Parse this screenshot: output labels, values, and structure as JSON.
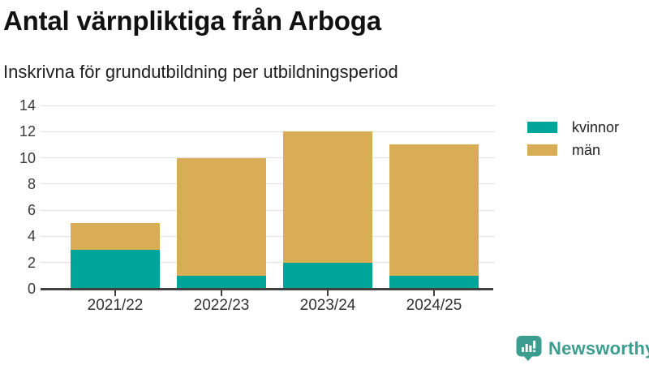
{
  "chart_data": {
    "type": "bar",
    "stacked": true,
    "title": "Antal värnpliktiga från Arboga",
    "subtitle": "Inskrivna för grundutbildning per utbildningsperiod",
    "categories": [
      "2021/22",
      "2022/23",
      "2023/24",
      "2024/25"
    ],
    "series": [
      {
        "name": "kvinnor",
        "color": "#00a59a",
        "values": [
          3,
          1,
          2,
          1
        ]
      },
      {
        "name": "män",
        "color": "#d8ad55",
        "values": [
          2,
          9,
          10,
          10
        ]
      }
    ],
    "stack_totals": [
      5,
      10,
      12,
      11
    ],
    "ylim": [
      0,
      14
    ],
    "yticks": [
      0,
      2,
      4,
      6,
      8,
      10,
      12,
      14
    ],
    "xlabel": "",
    "ylabel": "",
    "grid": "horizontal",
    "legend_position": "right"
  },
  "branding": {
    "logo_text": "Newsworthy",
    "logo_color": "#3d9c90",
    "logo_icon": "bar-chart-speech-bubble"
  },
  "style_colors": {
    "axis": "#404040",
    "gridline": "#e2e2e2",
    "tick_label": "#3a3a3a",
    "title_text": "#111111"
  }
}
